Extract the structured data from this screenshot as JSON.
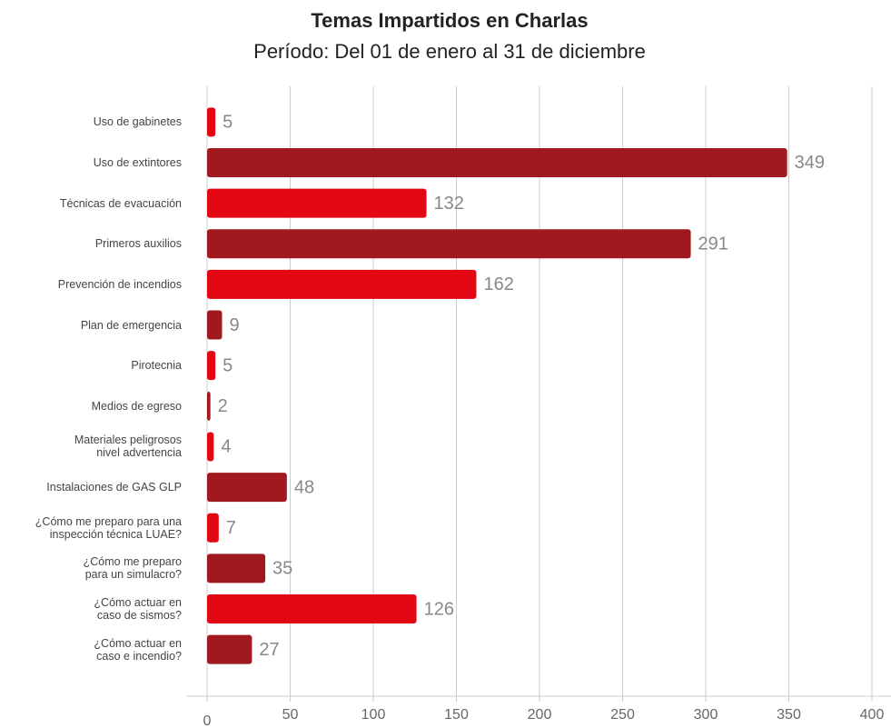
{
  "chart_data": {
    "type": "bar",
    "orientation": "horizontal",
    "title": "Temas Impartidos en Charlas",
    "subtitle": "Período: Del 01 de enero al 31 de diciembre",
    "categories": [
      "Uso de gabinetes",
      "Uso de extintores",
      "Técnicas de evacuación",
      "Primeros auxilios",
      "Prevención de incendios",
      "Plan de emergencia",
      "Pirotecnia",
      "Medios de egreso",
      "Materiales peligrosos\nnivel advertencia",
      "Instalaciones de GAS GLP",
      "¿Cómo me preparo para una\ninspección técnica LUAE?",
      "¿Cómo me preparo\npara un simulacro?",
      "¿Cómo actuar en\ncaso de sismos?",
      "¿Cómo actuar en\ncaso e incendio?"
    ],
    "values": [
      5,
      349,
      132,
      291,
      162,
      9,
      5,
      2,
      4,
      48,
      7,
      35,
      126,
      27
    ],
    "colors": [
      "#e30613",
      "#a0191e",
      "#e30613",
      "#a0191e",
      "#e30613",
      "#a0191e",
      "#e30613",
      "#a0191e",
      "#e30613",
      "#a0191e",
      "#e30613",
      "#a0191e",
      "#e30613",
      "#a0191e"
    ],
    "xlim": [
      0,
      400
    ],
    "xticks": [
      0,
      50,
      100,
      150,
      200,
      250,
      300,
      350,
      400
    ],
    "grid": true
  }
}
